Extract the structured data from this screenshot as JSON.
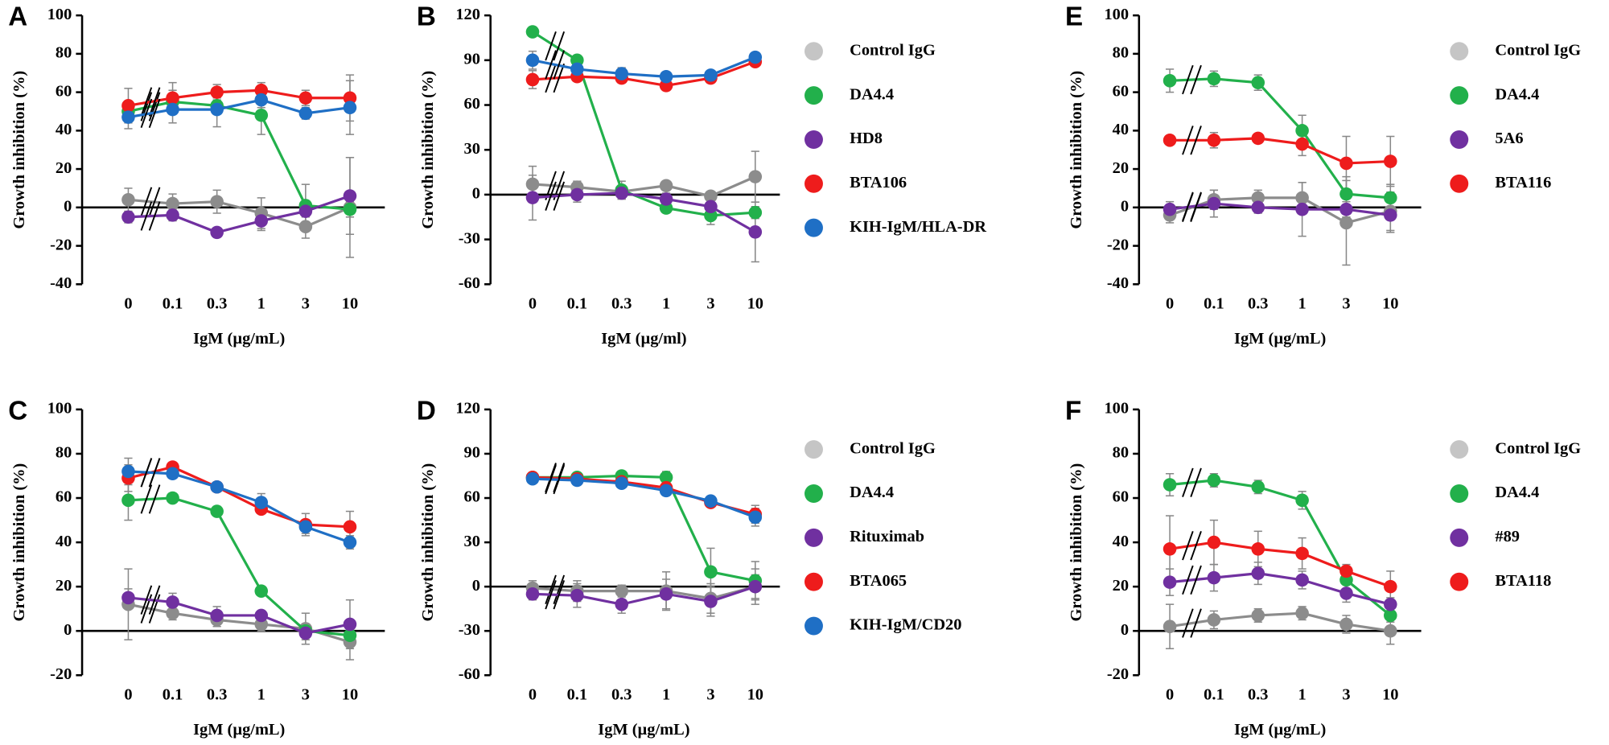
{
  "chart_data": [
    {
      "type": "line",
      "panel": "A",
      "y_label": "Growth inhibition (%)",
      "x_label": "IgM (µg/mL)",
      "categories": [
        "0",
        "0.1",
        "0.3",
        "1",
        "3",
        "10"
      ],
      "ylim": [
        -40,
        100
      ],
      "yticks": [
        -40,
        -20,
        0,
        20,
        40,
        60,
        80,
        100
      ],
      "legend": false,
      "series": [
        {
          "color": "#8c8c8c",
          "values": [
            4,
            2,
            3,
            -3,
            -10,
            0
          ],
          "errors": [
            6,
            5,
            6,
            8,
            6,
            26
          ]
        },
        {
          "color": "#22b04b",
          "values": [
            50,
            55,
            53,
            48,
            1,
            -1
          ],
          "errors": [
            5,
            6,
            4,
            10,
            11,
            4
          ]
        },
        {
          "color": "#7030a0",
          "values": [
            -5,
            -4,
            -13,
            -7,
            -2,
            6
          ],
          "errors": [
            3,
            3,
            2,
            5,
            3,
            20
          ]
        },
        {
          "color": "#ee1c1c",
          "values": [
            53,
            57,
            60,
            61,
            57,
            57
          ],
          "errors": [
            9,
            8,
            4,
            4,
            4,
            12
          ]
        },
        {
          "color": "#1f6fc5",
          "values": [
            47,
            51,
            51,
            56,
            49,
            52
          ],
          "errors": [
            6,
            7,
            9,
            4,
            3,
            14
          ]
        }
      ]
    },
    {
      "type": "line",
      "panel": "B",
      "y_label": "Growth inhibition (%)",
      "x_label": "IgM (µg/ml)",
      "categories": [
        "0",
        "0.1",
        "0.3",
        "1",
        "3",
        "10"
      ],
      "ylim": [
        -60,
        120
      ],
      "yticks": [
        -60,
        -30,
        0,
        30,
        60,
        90,
        120
      ],
      "legend": true,
      "series": [
        {
          "name": "Control IgG",
          "color": "#8c8c8c",
          "values": [
            7,
            5,
            2,
            6,
            -1,
            12
          ],
          "errors": [
            12,
            4,
            4,
            3,
            3,
            17
          ]
        },
        {
          "name": "DA4.4",
          "color": "#22b04b",
          "values": [
            109,
            90,
            3,
            -9,
            -14,
            -12
          ],
          "errors": [
            3,
            3,
            6,
            3,
            6,
            4
          ]
        },
        {
          "name": "HD8",
          "color": "#7030a0",
          "values": [
            -2,
            0,
            1,
            -3,
            -8,
            -25
          ],
          "errors": [
            15,
            5,
            4,
            4,
            5,
            20
          ]
        },
        {
          "name": "BTA106",
          "color": "#ee1c1c",
          "values": [
            77,
            79,
            78,
            73,
            78,
            89
          ],
          "errors": [
            6,
            3,
            2,
            2,
            2,
            2
          ]
        },
        {
          "name": "KIH-IgM/HLA-DR",
          "color": "#1f6fc5",
          "values": [
            90,
            84,
            81,
            79,
            80,
            92
          ],
          "errors": [
            6,
            4,
            4,
            3,
            3,
            2
          ]
        }
      ]
    },
    {
      "type": "line",
      "panel": "E",
      "y_label": "Growth inhibition (%)",
      "x_label": "IgM (µg/mL)",
      "categories": [
        "0",
        "0.1",
        "0.3",
        "1",
        "3",
        "10"
      ],
      "ylim": [
        -40,
        100
      ],
      "yticks": [
        -40,
        -20,
        0,
        20,
        40,
        60,
        80,
        100
      ],
      "legend": true,
      "series": [
        {
          "name": "Control IgG",
          "color": "#8c8c8c",
          "values": [
            -4,
            4,
            5,
            5,
            -8,
            -2
          ],
          "errors": [
            4,
            5,
            4,
            8,
            22,
            10
          ]
        },
        {
          "name": "DA4.4",
          "color": "#22b04b",
          "values": [
            66,
            67,
            65,
            40,
            7,
            5
          ],
          "errors": [
            6,
            4,
            4,
            8,
            9,
            7
          ]
        },
        {
          "name": "5A6",
          "color": "#7030a0",
          "values": [
            -1,
            2,
            0,
            -1,
            -1,
            -4
          ],
          "errors": [
            4,
            7,
            3,
            14,
            4,
            9
          ]
        },
        {
          "name": "BTA116",
          "color": "#ee1c1c",
          "values": [
            35,
            35,
            36,
            33,
            23,
            24
          ],
          "errors": [
            2,
            4,
            2,
            6,
            14,
            13
          ]
        }
      ]
    },
    {
      "type": "line",
      "panel": "C",
      "y_label": "Growth inhibition (%)",
      "x_label": "IgM (µg/mL)",
      "categories": [
        "0",
        "0.1",
        "0.3",
        "1",
        "3",
        "10"
      ],
      "ylim": [
        -20,
        100
      ],
      "yticks": [
        -20,
        0,
        20,
        40,
        60,
        80,
        100
      ],
      "legend": false,
      "series": [
        {
          "color": "#8c8c8c",
          "values": [
            12,
            8,
            5,
            3,
            1,
            -5
          ],
          "errors": [
            16,
            3,
            3,
            3,
            7,
            8
          ]
        },
        {
          "color": "#22b04b",
          "values": [
            59,
            60,
            54,
            18,
            0,
            -2
          ],
          "errors": [
            9,
            2,
            2,
            2,
            3,
            4
          ]
        },
        {
          "color": "#7030a0",
          "values": [
            15,
            13,
            7,
            7,
            -1,
            3
          ],
          "errors": [
            4,
            4,
            4,
            2,
            3,
            11
          ]
        },
        {
          "color": "#ee1c1c",
          "values": [
            69,
            74,
            65,
            55,
            48,
            47
          ],
          "errors": [
            6,
            2,
            2,
            2,
            5,
            7
          ]
        },
        {
          "color": "#1f6fc5",
          "values": [
            72,
            71,
            65,
            58,
            47,
            40
          ],
          "errors": [
            6,
            2,
            2,
            4,
            3,
            3
          ]
        }
      ]
    },
    {
      "type": "line",
      "panel": "D",
      "y_label": "Growth inhibition (%)",
      "x_label": "IgM (µg/mL)",
      "categories": [
        "0",
        "0.1",
        "0.3",
        "1",
        "3",
        "10"
      ],
      "ylim": [
        -60,
        120
      ],
      "yticks": [
        -60,
        -30,
        0,
        30,
        60,
        90,
        120
      ],
      "legend": true,
      "series": [
        {
          "name": "Control IgG",
          "color": "#8c8c8c",
          "values": [
            -1,
            -3,
            -3,
            -3,
            -8,
            0
          ],
          "errors": [
            5,
            7,
            4,
            13,
            10,
            12
          ]
        },
        {
          "name": "DA4.4",
          "color": "#22b04b",
          "values": [
            74,
            74,
            75,
            74,
            10,
            4
          ],
          "errors": [
            3,
            2,
            2,
            4,
            16,
            13
          ]
        },
        {
          "name": "Rituximab",
          "color": "#7030a0",
          "values": [
            -5,
            -6,
            -12,
            -5,
            -10,
            0
          ],
          "errors": [
            4,
            8,
            6,
            10,
            10,
            8
          ]
        },
        {
          "name": "BTA065",
          "color": "#ee1c1c",
          "values": [
            74,
            73,
            71,
            67,
            57,
            49
          ],
          "errors": [
            3,
            3,
            3,
            3,
            3,
            6
          ]
        },
        {
          "name": "KIH-IgM/CD20",
          "color": "#1f6fc5",
          "values": [
            73,
            72,
            70,
            65,
            58,
            47
          ],
          "errors": [
            3,
            3,
            3,
            3,
            3,
            6
          ]
        }
      ]
    },
    {
      "type": "line",
      "panel": "F",
      "y_label": "Growth inhibition (%)",
      "x_label": "IgM (µg/mL)",
      "categories": [
        "0",
        "0.1",
        "0.3",
        "1",
        "3",
        "10"
      ],
      "ylim": [
        -20,
        100
      ],
      "yticks": [
        -20,
        0,
        20,
        40,
        60,
        80,
        100
      ],
      "legend": true,
      "series": [
        {
          "name": "Control IgG",
          "color": "#8c8c8c",
          "values": [
            2,
            5,
            7,
            8,
            3,
            0
          ],
          "errors": [
            10,
            4,
            3,
            3,
            4,
            6
          ]
        },
        {
          "name": "DA4.4",
          "color": "#22b04b",
          "values": [
            66,
            68,
            65,
            59,
            23,
            7
          ],
          "errors": [
            5,
            3,
            3,
            4,
            4,
            3
          ]
        },
        {
          "name": "#89",
          "color": "#7030a0",
          "values": [
            22,
            24,
            26,
            23,
            17,
            12
          ],
          "errors": [
            6,
            6,
            5,
            4,
            4,
            3
          ]
        },
        {
          "name": "BTA118",
          "color": "#ee1c1c",
          "values": [
            37,
            40,
            37,
            35,
            27,
            20
          ],
          "errors": [
            15,
            10,
            8,
            7,
            3,
            7
          ]
        }
      ]
    }
  ]
}
